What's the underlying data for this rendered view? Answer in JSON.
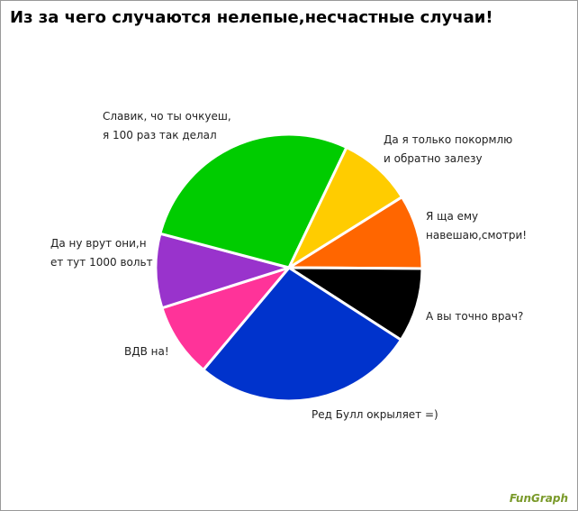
{
  "chart_data": {
    "type": "pie",
    "title": "Из за чего случаются нелепые,несчастные случаи!",
    "watermark": "FunGraph",
    "categories": [
      "Я ща ему навешаю,смотри!",
      "А вы точно врач?",
      "Ред Булл окрыляет =)",
      "ВДВ на!",
      "Да ну врут они,н\nет тут 1000 вольт",
      "Славик, чо ты очкуеш,\nя 100 раз так делал",
      "Да я только покормлю\nи обратно залезу"
    ],
    "values": [
      9,
      9,
      27,
      9,
      9,
      28,
      9
    ],
    "colors": [
      "#ff6600",
      "#000000",
      "#0033cc",
      "#ff3399",
      "#9933cc",
      "#00cc00",
      "#ffcc00"
    ]
  }
}
